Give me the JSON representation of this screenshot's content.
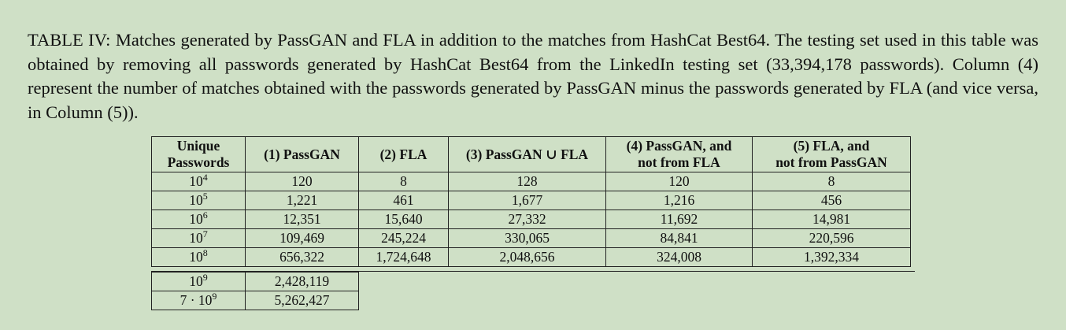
{
  "caption": "TABLE IV: Matches generated by PassGAN and FLA in addition to the matches from HashCat Best64. The testing set used in this table was obtained by removing all passwords generated by HashCat Best64 from the LinkedIn testing set (33,394,178 passwords). Column (4) represent the number of matches obtained with the passwords generated by PassGAN minus the passwords generated by FLA  (and vice versa, in Column (5)).",
  "headers": {
    "unique_line1": "Unique",
    "unique_line2": "Passwords",
    "c1": "(1) PassGAN",
    "c2": "(2) FLA",
    "c3": "(3) PassGAN ∪ FLA",
    "c4_line1": "(4) PassGAN, and",
    "c4_line2": "not from FLA",
    "c5_line1": "(5) FLA, and",
    "c5_line2": "not from PassGAN"
  },
  "rows": [
    {
      "base": "10",
      "exp": "4",
      "c1": "120",
      "c2": "8",
      "c3": "128",
      "c4": "120",
      "c5": "8"
    },
    {
      "base": "10",
      "exp": "5",
      "c1": "1,221",
      "c2": "461",
      "c3": "1,677",
      "c4": "1,216",
      "c5": "456"
    },
    {
      "base": "10",
      "exp": "6",
      "c1": "12,351",
      "c2": "15,640",
      "c3": "27,332",
      "c4": "11,692",
      "c5": "14,981"
    },
    {
      "base": "10",
      "exp": "7",
      "c1": "109,469",
      "c2": "245,224",
      "c3": "330,065",
      "c4": "84,841",
      "c5": "220,596"
    },
    {
      "base": "10",
      "exp": "8",
      "c1": "656,322",
      "c2": "1,724,648",
      "c3": "2,048,656",
      "c4": "324,008",
      "c5": "1,392,334"
    }
  ],
  "extra_rows": [
    {
      "base": "10",
      "exp": "9",
      "c1": "2,428,119"
    },
    {
      "base": "7 · 10",
      "exp": "9",
      "c1": "5,262,427"
    }
  ]
}
